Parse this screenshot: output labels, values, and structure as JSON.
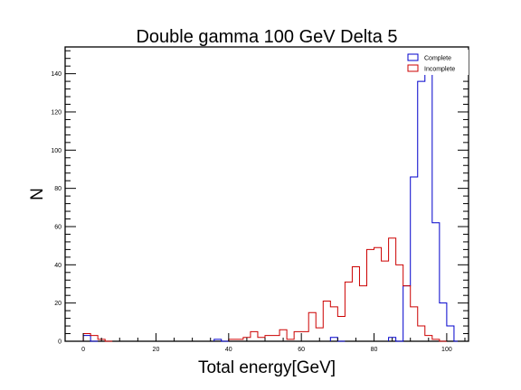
{
  "chart_data": {
    "type": "histogram",
    "title": "Double gamma 100 GeV Delta 5",
    "xlabel": "Total energy[GeV]",
    "ylabel": "N",
    "xlim": [
      -5,
      106
    ],
    "ylim": [
      0,
      154
    ],
    "bin_width": 2,
    "x_ticks": [
      0,
      20,
      40,
      60,
      80,
      100
    ],
    "y_ticks": [
      0,
      20,
      40,
      60,
      80,
      100,
      120,
      140
    ],
    "legend_position": "top-right",
    "series": [
      {
        "name": "Complete",
        "color": "#0000cc",
        "bins": [
          {
            "x": 0,
            "y": 3
          },
          {
            "x": 2,
            "y": 0
          },
          {
            "x": 36,
            "y": 1
          },
          {
            "x": 38,
            "y": 0
          },
          {
            "x": 68,
            "y": 2
          },
          {
            "x": 70,
            "y": 0
          },
          {
            "x": 84,
            "y": 2
          },
          {
            "x": 86,
            "y": 0
          },
          {
            "x": 88,
            "y": 29
          },
          {
            "x": 90,
            "y": 86
          },
          {
            "x": 92,
            "y": 136
          },
          {
            "x": 94,
            "y": 145
          },
          {
            "x": 96,
            "y": 62
          },
          {
            "x": 98,
            "y": 20
          },
          {
            "x": 100,
            "y": 8
          },
          {
            "x": 102,
            "y": 0
          }
        ]
      },
      {
        "name": "Incomplete",
        "color": "#cc0000",
        "bins": [
          {
            "x": 0,
            "y": 4
          },
          {
            "x": 2,
            "y": 3
          },
          {
            "x": 4,
            "y": 1
          },
          {
            "x": 6,
            "y": 0
          },
          {
            "x": 40,
            "y": 1
          },
          {
            "x": 42,
            "y": 1
          },
          {
            "x": 44,
            "y": 2
          },
          {
            "x": 46,
            "y": 5
          },
          {
            "x": 48,
            "y": 2
          },
          {
            "x": 50,
            "y": 3
          },
          {
            "x": 52,
            "y": 3
          },
          {
            "x": 54,
            "y": 6
          },
          {
            "x": 56,
            "y": 1
          },
          {
            "x": 58,
            "y": 5
          },
          {
            "x": 60,
            "y": 5
          },
          {
            "x": 62,
            "y": 15
          },
          {
            "x": 64,
            "y": 7
          },
          {
            "x": 66,
            "y": 21
          },
          {
            "x": 68,
            "y": 18
          },
          {
            "x": 70,
            "y": 13
          },
          {
            "x": 72,
            "y": 31
          },
          {
            "x": 74,
            "y": 39
          },
          {
            "x": 76,
            "y": 29
          },
          {
            "x": 78,
            "y": 48
          },
          {
            "x": 80,
            "y": 49
          },
          {
            "x": 82,
            "y": 42
          },
          {
            "x": 84,
            "y": 54
          },
          {
            "x": 86,
            "y": 40
          },
          {
            "x": 88,
            "y": 29
          },
          {
            "x": 90,
            "y": 18
          },
          {
            "x": 92,
            "y": 8
          },
          {
            "x": 94,
            "y": 3
          },
          {
            "x": 96,
            "y": 1
          },
          {
            "x": 98,
            "y": 0
          }
        ]
      }
    ]
  }
}
